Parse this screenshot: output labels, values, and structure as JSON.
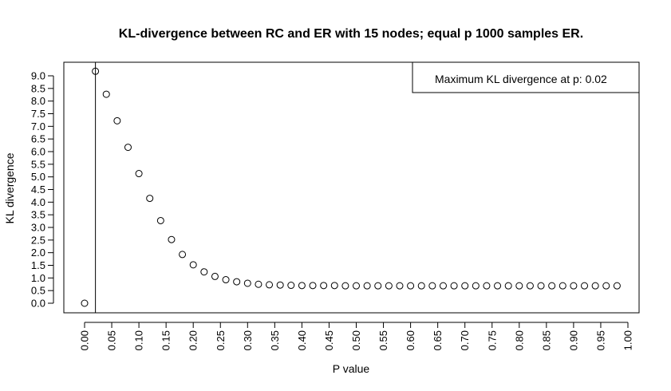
{
  "chart_data": {
    "type": "scatter",
    "title": "KL-divergence between RC and ER with 15 nodes; equal p 1000 samples ER.",
    "xlabel": "P value",
    "ylabel": "KL divergence",
    "xlim": [
      0,
      1
    ],
    "ylim": [
      0,
      9
    ],
    "xticks": [
      "0.00",
      "0.05",
      "0.10",
      "0.15",
      "0.20",
      "0.25",
      "0.30",
      "0.35",
      "0.40",
      "0.45",
      "0.50",
      "0.55",
      "0.60",
      "0.65",
      "0.70",
      "0.75",
      "0.80",
      "0.85",
      "0.90",
      "0.95",
      "1.00"
    ],
    "yticks": [
      "0.0",
      "0.5",
      "1.0",
      "1.5",
      "2.0",
      "2.5",
      "3.0",
      "3.5",
      "4.0",
      "4.5",
      "5.0",
      "5.5",
      "6.0",
      "6.5",
      "7.0",
      "7.5",
      "8.0",
      "8.5",
      "9.0"
    ],
    "x": [
      0.0,
      0.02,
      0.04,
      0.06,
      0.08,
      0.1,
      0.12,
      0.14,
      0.16,
      0.18,
      0.2,
      0.22,
      0.24,
      0.26,
      0.28,
      0.3,
      0.32,
      0.34,
      0.36,
      0.38,
      0.4,
      0.42,
      0.44,
      0.46,
      0.48,
      0.5,
      0.52,
      0.54,
      0.56,
      0.58,
      0.6,
      0.62,
      0.64,
      0.66,
      0.68,
      0.7,
      0.72,
      0.74,
      0.76,
      0.78,
      0.8,
      0.82,
      0.84,
      0.86,
      0.88,
      0.9,
      0.92,
      0.94,
      0.96,
      0.98
    ],
    "y": [
      0.0,
      9.18,
      8.27,
      7.22,
      6.17,
      5.13,
      4.15,
      3.27,
      2.52,
      1.93,
      1.52,
      1.24,
      1.06,
      0.93,
      0.85,
      0.79,
      0.75,
      0.73,
      0.72,
      0.71,
      0.7,
      0.7,
      0.7,
      0.7,
      0.69,
      0.69,
      0.69,
      0.69,
      0.69,
      0.69,
      0.69,
      0.69,
      0.69,
      0.69,
      0.69,
      0.69,
      0.69,
      0.69,
      0.69,
      0.69,
      0.69,
      0.69,
      0.69,
      0.69,
      0.69,
      0.69,
      0.69,
      0.69,
      0.69,
      0.69
    ],
    "vline_x": 0.02,
    "legend": {
      "text": "Maximum KL divergence at p: 0.02",
      "position": "top-right"
    },
    "grid": false,
    "colors": {
      "points": "#000000",
      "axes": "#000000",
      "background": "#ffffff"
    }
  }
}
